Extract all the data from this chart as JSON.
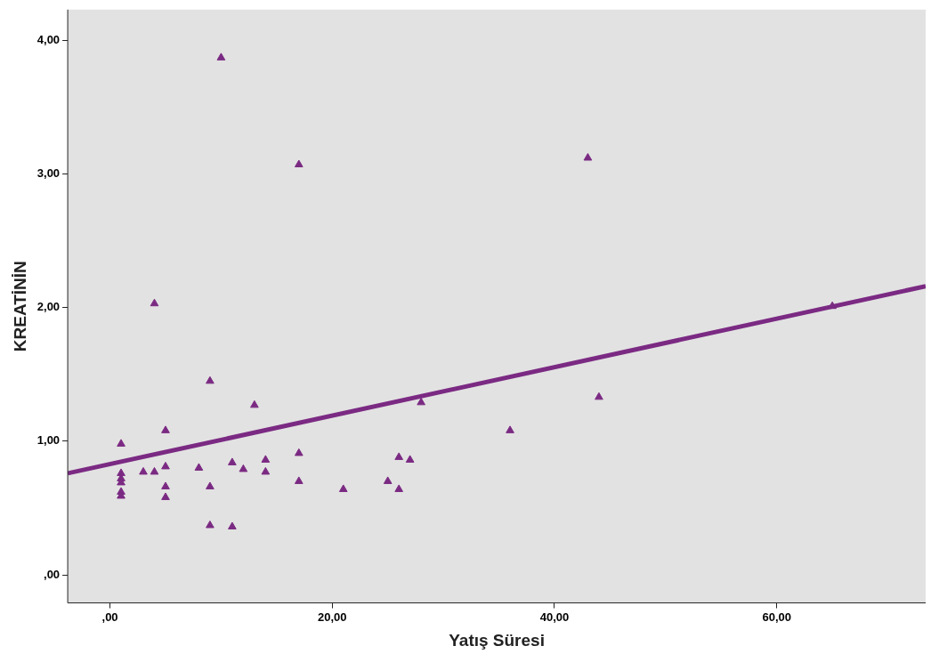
{
  "chart_data": {
    "type": "scatter",
    "xlabel": "Yatış Süresi",
    "ylabel": "KREATİNİN",
    "xlim": [
      -3.8,
      73.4
    ],
    "ylim": [
      -0.21,
      4.23
    ],
    "xticks": [
      {
        "value": 0,
        "label": ",00"
      },
      {
        "value": 20,
        "label": "20,00"
      },
      {
        "value": 40,
        "label": "40,00"
      },
      {
        "value": 60,
        "label": "60,00"
      }
    ],
    "yticks": [
      {
        "value": 0,
        "label": ",00"
      },
      {
        "value": 1,
        "label": "1,00"
      },
      {
        "value": 2,
        "label": "2,00"
      },
      {
        "value": 3,
        "label": "3,00"
      },
      {
        "value": 4,
        "label": "4,00"
      }
    ],
    "grid": false,
    "legend": false,
    "marker": "triangle",
    "series": [
      {
        "color": "#7b2a83",
        "x": [
          1,
          1,
          1,
          1,
          1,
          1,
          3,
          4,
          4,
          5,
          5,
          5,
          5,
          8,
          9,
          9,
          9,
          10,
          11,
          11,
          12,
          13,
          14,
          14,
          17,
          17,
          17,
          21,
          25,
          26,
          26,
          27,
          28,
          36,
          43,
          44,
          65
        ],
        "values": [
          0.98,
          0.76,
          0.72,
          0.69,
          0.62,
          0.59,
          0.77,
          0.77,
          2.03,
          1.08,
          0.81,
          0.66,
          0.58,
          0.8,
          1.45,
          0.66,
          0.37,
          3.87,
          0.84,
          0.36,
          0.79,
          1.27,
          0.86,
          0.77,
          3.07,
          0.91,
          0.7,
          0.64,
          0.7,
          0.88,
          0.64,
          0.86,
          1.29,
          1.08,
          3.12,
          1.33,
          2.01
        ]
      },
      {
        "type": "line",
        "marker": "none",
        "color": "#7b2a83",
        "x": [
          -3.8,
          73.4
        ],
        "values": [
          0.76,
          2.16
        ]
      }
    ]
  }
}
